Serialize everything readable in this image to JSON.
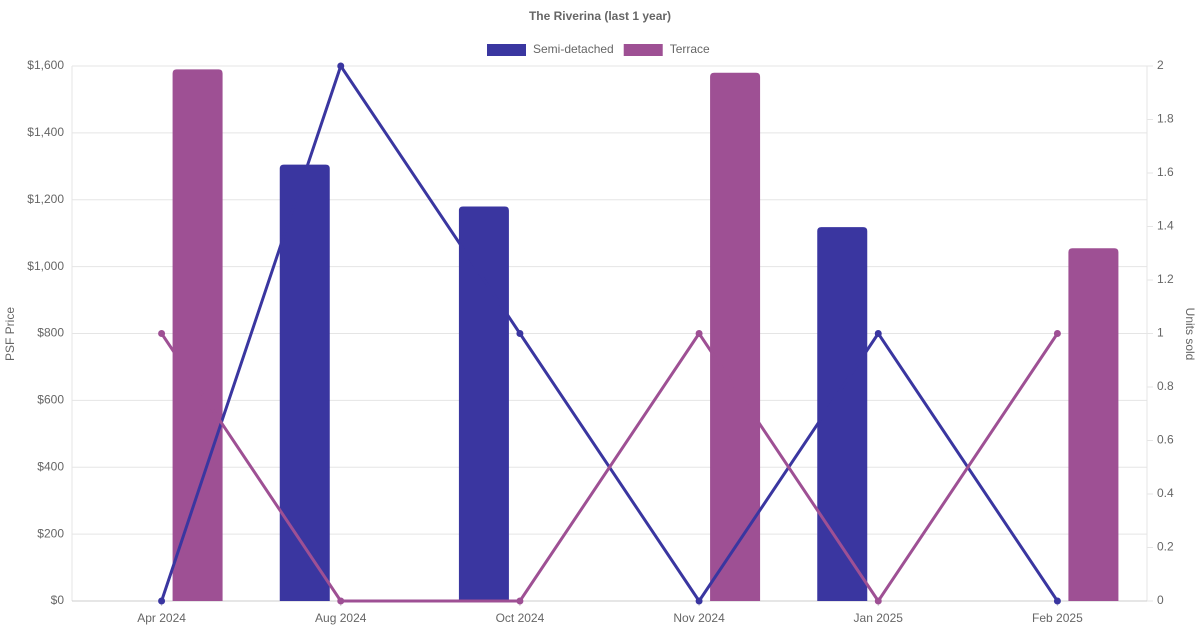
{
  "chart_data": {
    "type": "bar-line",
    "title": "The Riverina (last 1 year)",
    "y_label": "PSF Price",
    "y2_label": "Units sold",
    "categories": [
      "Apr 2024",
      "Aug 2024",
      "Oct 2024",
      "Nov 2024",
      "Jan 2025",
      "Feb 2025"
    ],
    "series": [
      {
        "name": "Semi-detached",
        "color": "#3a36a0",
        "values": [
          null,
          1305,
          1180,
          null,
          1118,
          null
        ],
        "units_sold": [
          0,
          2,
          1,
          0,
          1,
          0
        ]
      },
      {
        "name": "Terrace",
        "color": "#9e5094",
        "values": [
          1590,
          null,
          null,
          1580,
          null,
          1055
        ],
        "units_sold": [
          1,
          0,
          0,
          1,
          0,
          1
        ]
      }
    ],
    "ylim": [
      0,
      1600
    ],
    "yticks": [
      {
        "value": 0,
        "label": "$0"
      },
      {
        "value": 200,
        "label": "$200"
      },
      {
        "value": 400,
        "label": "$400"
      },
      {
        "value": 600,
        "label": "$600"
      },
      {
        "value": 800,
        "label": "$800"
      },
      {
        "value": 1000,
        "label": "$1,000"
      },
      {
        "value": 1200,
        "label": "$1,200"
      },
      {
        "value": 1400,
        "label": "$1,400"
      },
      {
        "value": 1600,
        "label": "$1,600"
      }
    ],
    "y2lim": [
      0,
      2
    ],
    "y2ticks": [
      0,
      0.2,
      0.4,
      0.6,
      0.8,
      1,
      1.2,
      1.4,
      1.6,
      1.8,
      2
    ],
    "grid": true,
    "legend": "top"
  }
}
